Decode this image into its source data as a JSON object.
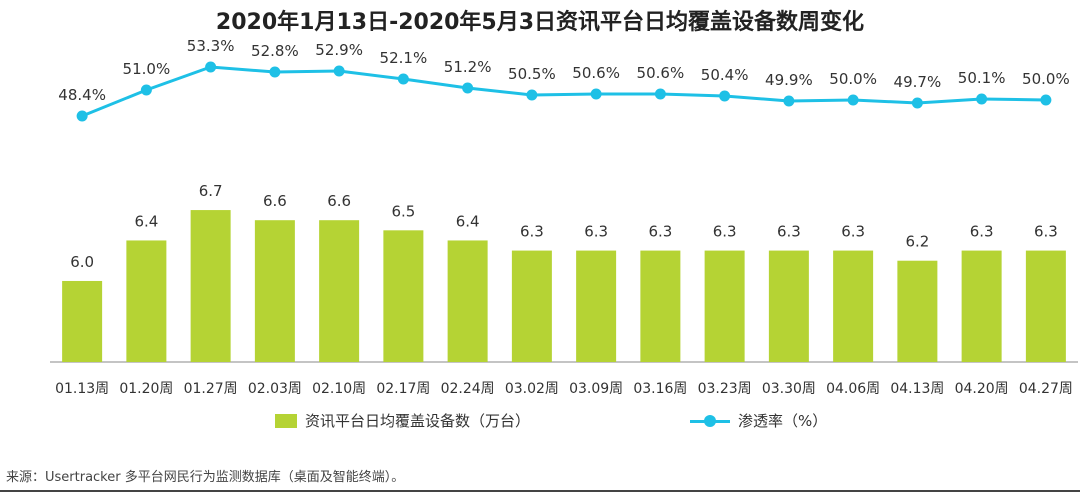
{
  "chart_data": {
    "type": "bar+line",
    "title": "2020年1月13日-2020年5月3日资讯平台日均覆盖设备数周变化",
    "categories": [
      "01.13周",
      "01.20周",
      "01.27周",
      "02.03周",
      "02.10周",
      "02.17周",
      "02.24周",
      "03.02周",
      "03.09周",
      "03.16周",
      "03.23周",
      "03.30周",
      "04.06周",
      "04.13周",
      "04.20周",
      "04.27周"
    ],
    "series": [
      {
        "name": "资讯平台日均覆盖设备数（万台）",
        "type": "bar",
        "color": "#b5d334",
        "values": [
          6.0,
          6.4,
          6.7,
          6.6,
          6.6,
          6.5,
          6.4,
          6.3,
          6.3,
          6.3,
          6.3,
          6.3,
          6.3,
          6.2,
          6.3,
          6.3
        ],
        "labels": [
          "6.0",
          "6.4",
          "6.7",
          "6.6",
          "6.6",
          "6.5",
          "6.4",
          "6.3",
          "6.3",
          "6.3",
          "6.3",
          "6.3",
          "6.3",
          "6.2",
          "6.3",
          "6.3"
        ]
      },
      {
        "name": "渗透率（%）",
        "type": "line",
        "color": "#1ec0e6",
        "values": [
          48.4,
          51.0,
          53.3,
          52.8,
          52.9,
          52.1,
          51.2,
          50.5,
          50.6,
          50.6,
          50.4,
          49.9,
          50.0,
          49.7,
          50.1,
          50.0
        ],
        "labels": [
          "48.4%",
          "51.0%",
          "53.3%",
          "52.8%",
          "52.9%",
          "52.1%",
          "51.2%",
          "50.5%",
          "50.6%",
          "50.6%",
          "50.4%",
          "49.9%",
          "50.0%",
          "49.7%",
          "50.1%",
          "50.0%"
        ]
      }
    ],
    "bar_axis": {
      "range": [
        5.2,
        6.75
      ]
    },
    "line_axis": {
      "range": [
        42,
        56
      ]
    },
    "grid": false,
    "legend": "bottom"
  },
  "source": "来源：Usertracker 多平台网民行为监测数据库（桌面及智能终端）。"
}
